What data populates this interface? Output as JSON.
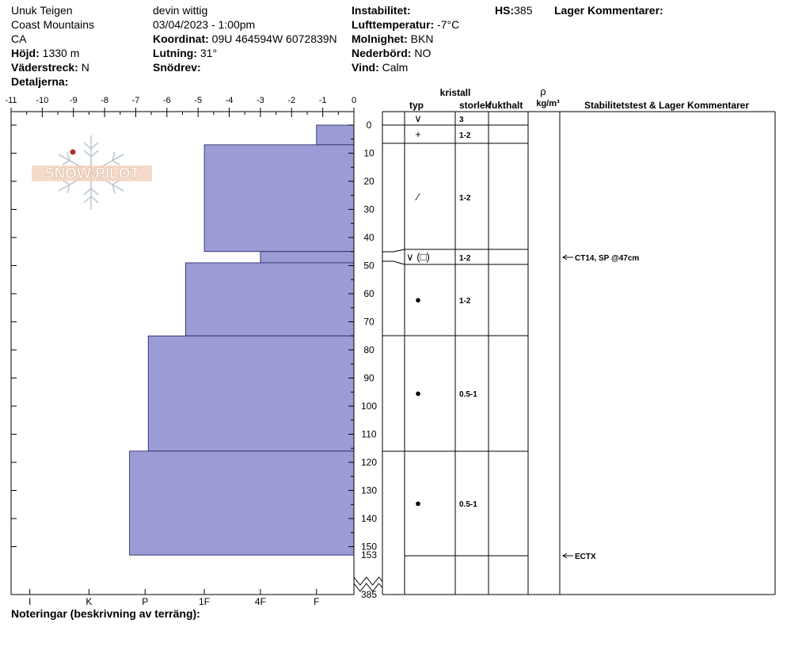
{
  "header": {
    "observer": "Unuk Teigen",
    "range": "Coast Mountains",
    "region": "CA",
    "elevation_label": "Höjd:",
    "elevation_value": "1330 m",
    "aspect_label": "Väderstreck:",
    "aspect_value": "N",
    "details_label": "Detaljerna:",
    "user": "devin wittig",
    "datetime": "03/04/2023 - 1:00pm",
    "coord_label": "Koordinat:",
    "coord_value": "09U 464594W 6072839N",
    "slope_label": "Lutning:",
    "slope_value": "31°",
    "drift_label": "Snödrev:",
    "instability_label": "Instabilitet:",
    "air_temp_label": "Lufttemperatur:",
    "air_temp_value": "-7°C",
    "sky_label": "Molnighet:",
    "sky_value": "BKN",
    "precip_label": "Nederbörd:",
    "precip_value": "NO",
    "wind_label": "Vind:",
    "wind_value": "Calm",
    "hs_label": "HS:",
    "hs_value": "385",
    "layer_comments_label": "Lager Kommentarer:"
  },
  "columns": {
    "crystal": "kristall",
    "type": "typ",
    "size": "storlek",
    "moisture": "fukthalt",
    "rho": "ρ",
    "density_unit": "kg/m³",
    "stability": "Stabilitetstest & Lager Kommentarer"
  },
  "footer": {
    "notes_label": "Noteringar (beskrivning av terräng):"
  },
  "logo_text": "SNOW PILOT",
  "chart_data": {
    "type": "bar",
    "orientation": "horizontal",
    "temp_axis": {
      "min": -11,
      "max": 0,
      "ticks": [
        -11,
        -10,
        -9,
        -8,
        -7,
        -6,
        -5,
        -4,
        -3,
        -2,
        -1,
        0
      ]
    },
    "hardness_axis": {
      "labels": [
        "I",
        "K",
        "P",
        "1F",
        "4F",
        "F"
      ],
      "positions": [
        -10.4,
        -8.5,
        -6.7,
        -4.8,
        -3,
        -1.2
      ]
    },
    "depth_axis": {
      "min": 0,
      "max": 150,
      "ticks": [
        0,
        10,
        20,
        30,
        40,
        50,
        60,
        70,
        80,
        90,
        100,
        110,
        120,
        130,
        140,
        150
      ],
      "bottom_label": "153",
      "total_label": "385"
    },
    "layers": [
      {
        "top": 0,
        "bottom": 7,
        "hardness_value": -1.2,
        "grain_symbol": "∨",
        "grain_size": "3"
      },
      {
        "top": 7,
        "bottom": 45,
        "hardness_value": -4.8,
        "grain_symbol": "+",
        "grain_size": "1-2"
      },
      {
        "top": 45,
        "bottom": 49,
        "hardness_value": -3,
        "grain_symbol": "⁄",
        "grain_size": "1-2"
      },
      {
        "top": 49,
        "bottom": 75,
        "hardness_value": -5.4,
        "grain_symbol": "∨(□)",
        "grain_size": "1-2"
      },
      {
        "top": 75,
        "bottom": 116,
        "hardness_value": -6.6,
        "grain_symbol": "●",
        "grain_size": "1-2"
      },
      {
        "top": 116,
        "bottom": 153,
        "hardness_value": -7.2,
        "grain_symbol": "●",
        "grain_size": "0.5-1"
      }
    ],
    "grain_rows": [
      {
        "symbol": "∨",
        "size": "3",
        "depth": 2
      },
      {
        "symbol": "+",
        "size": "1-2",
        "depth": 14
      },
      {
        "symbol": "⁄",
        "size": "1-2",
        "depth": 29
      },
      {
        "symbol": "∨ (□)",
        "size": "1-2",
        "depth": 47
      },
      {
        "symbol": "●",
        "size": "1-2",
        "depth": 63
      },
      {
        "symbol": "●",
        "size": "0.5-1",
        "depth": 96
      },
      {
        "symbol": "●",
        "size": "0.5-1",
        "depth": 135
      }
    ],
    "stability_tests": [
      {
        "label": "CT14, SP @47cm",
        "depth": 47
      },
      {
        "label": "ECTX",
        "depth": 153
      }
    ]
  }
}
